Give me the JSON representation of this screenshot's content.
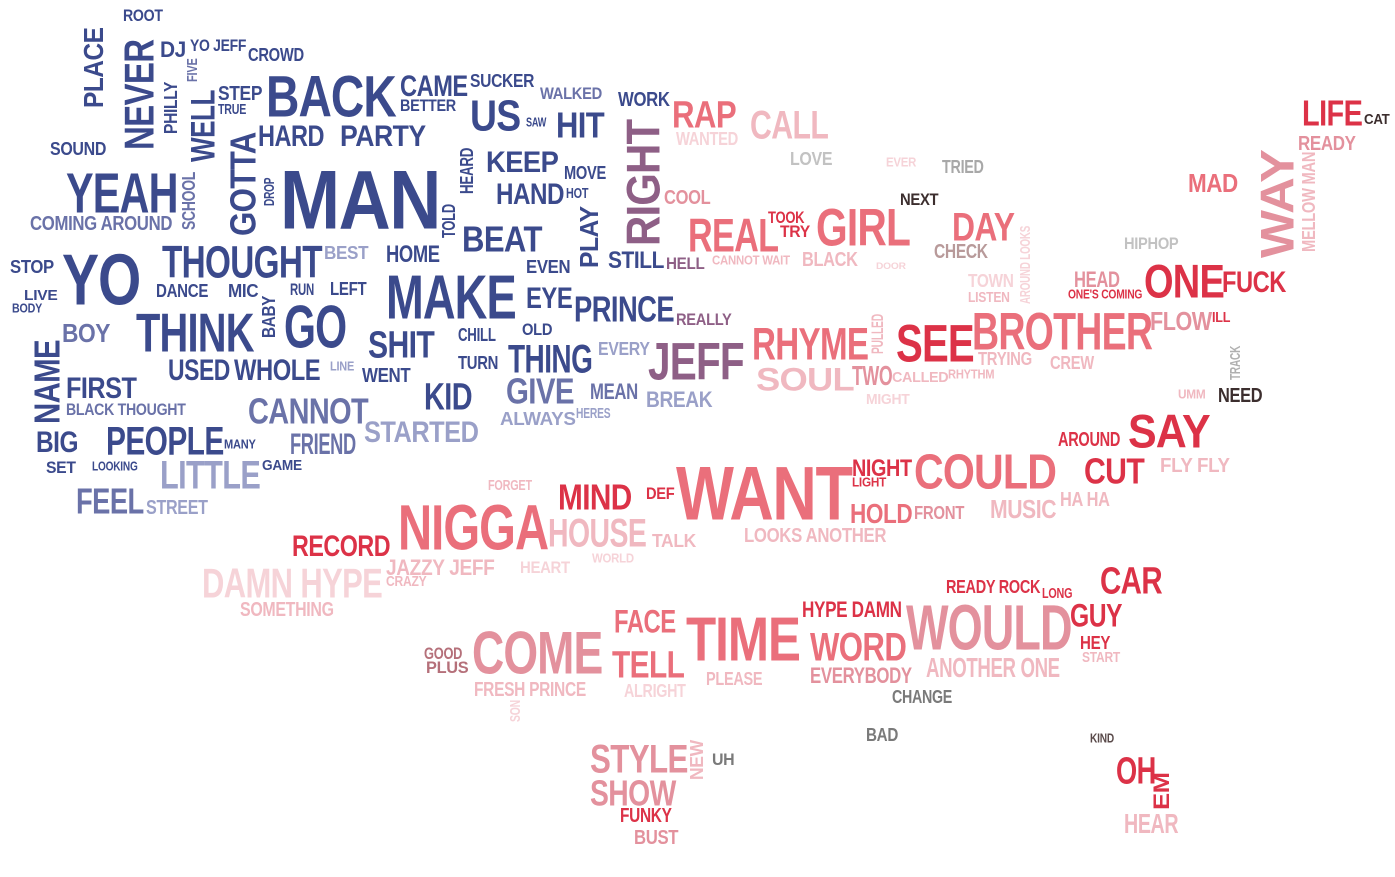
{
  "palette": {
    "navy": "#3b4a8c",
    "slate": "#6a72a8",
    "pale_blue": "#9aa0c8",
    "mauve": "#8e5f86",
    "red": "#dc3247",
    "coral": "#ea6f7b",
    "rose": "#e3919d",
    "pink": "#f0b8c0",
    "pale_pink": "#f6d3d8",
    "grey": "#8a8a8a",
    "dark": "#3c2e2e"
  },
  "words": [
    {
      "text": "ROOT",
      "color": "#3b4a8c"
    },
    {
      "text": "PLACE",
      "color": "#3b4a8c"
    },
    {
      "text": "NEVER",
      "color": "#3b4a8c"
    },
    {
      "text": "DJ",
      "color": "#3b4a8c"
    },
    {
      "text": "YO JEFF",
      "color": "#3b4a8c"
    },
    {
      "text": "CROWD",
      "color": "#3b4a8c"
    },
    {
      "text": "FIVE",
      "color": "#6a72a8"
    },
    {
      "text": "PHILLY",
      "color": "#3b4a8c"
    },
    {
      "text": "STEP",
      "color": "#3b4a8c"
    },
    {
      "text": "TRUE",
      "color": "#3b4a8c"
    },
    {
      "text": "WELL",
      "color": "#3b4a8c"
    },
    {
      "text": "BACK",
      "color": "#3b4a8c"
    },
    {
      "text": "CAME",
      "color": "#3b4a8c"
    },
    {
      "text": "BETTER",
      "color": "#3b4a8c"
    },
    {
      "text": "SUCKER",
      "color": "#3b4a8c"
    },
    {
      "text": "WALKED",
      "color": "#6a72a8"
    },
    {
      "text": "US",
      "color": "#3b4a8c"
    },
    {
      "text": "SAW",
      "color": "#3b4a8c"
    },
    {
      "text": "HIT",
      "color": "#3b4a8c"
    },
    {
      "text": "WORK",
      "color": "#3b4a8c"
    },
    {
      "text": "HARD",
      "color": "#3b4a8c"
    },
    {
      "text": "PARTY",
      "color": "#3b4a8c"
    },
    {
      "text": "SOUND",
      "color": "#3b4a8c"
    },
    {
      "text": "YEAH",
      "color": "#3b4a8c"
    },
    {
      "text": "SCHOOL",
      "color": "#6a72a8"
    },
    {
      "text": "GOTTA",
      "color": "#3b4a8c"
    },
    {
      "text": "DROP",
      "color": "#3b4a8c"
    },
    {
      "text": "MAN",
      "color": "#3b4a8c"
    },
    {
      "text": "HEARD",
      "color": "#3b4a8c"
    },
    {
      "text": "KEEP",
      "color": "#3b4a8c"
    },
    {
      "text": "MOVE",
      "color": "#3b4a8c"
    },
    {
      "text": "HAND",
      "color": "#3b4a8c"
    },
    {
      "text": "HOT",
      "color": "#3b4a8c"
    },
    {
      "text": "COMING AROUND",
      "color": "#6a72a8"
    },
    {
      "text": "TOLD",
      "color": "#3b4a8c"
    },
    {
      "text": "BEAT",
      "color": "#3b4a8c"
    },
    {
      "text": "PLAY",
      "color": "#3b4a8c"
    },
    {
      "text": "THOUGHT",
      "color": "#3b4a8c"
    },
    {
      "text": "BEST",
      "color": "#9aa0c8"
    },
    {
      "text": "HOME",
      "color": "#3b4a8c"
    },
    {
      "text": "EVEN",
      "color": "#3b4a8c"
    },
    {
      "text": "STILL",
      "color": "#3b4a8c"
    },
    {
      "text": "HELL",
      "color": "#8e5f86"
    },
    {
      "text": "STOP",
      "color": "#3b4a8c"
    },
    {
      "text": "YO",
      "color": "#3b4a8c"
    },
    {
      "text": "LIVE",
      "color": "#3b4a8c"
    },
    {
      "text": "BODY",
      "color": "#3b4a8c"
    },
    {
      "text": "DANCE",
      "color": "#3b4a8c"
    },
    {
      "text": "MIC",
      "color": "#3b4a8c"
    },
    {
      "text": "RUN",
      "color": "#3b4a8c"
    },
    {
      "text": "LEFT",
      "color": "#3b4a8c"
    },
    {
      "text": "MAKE",
      "color": "#3b4a8c"
    },
    {
      "text": "EYE",
      "color": "#3b4a8c"
    },
    {
      "text": "PRINCE",
      "color": "#3b4a8c"
    },
    {
      "text": "REALLY",
      "color": "#8e5f86"
    },
    {
      "text": "BOY",
      "color": "#6a72a8"
    },
    {
      "text": "THINK",
      "color": "#3b4a8c"
    },
    {
      "text": "BABY",
      "color": "#3b4a8c"
    },
    {
      "text": "GO",
      "color": "#3b4a8c"
    },
    {
      "text": "SHIT",
      "color": "#3b4a8c"
    },
    {
      "text": "CHILL",
      "color": "#3b4a8c"
    },
    {
      "text": "OLD",
      "color": "#3b4a8c"
    },
    {
      "text": "NAME",
      "color": "#3b4a8c"
    },
    {
      "text": "TURN",
      "color": "#3b4a8c"
    },
    {
      "text": "THING",
      "color": "#3b4a8c"
    },
    {
      "text": "EVERY",
      "color": "#9aa0c8"
    },
    {
      "text": "JEFF",
      "color": "#8e5f86"
    },
    {
      "text": "USED",
      "color": "#3b4a8c"
    },
    {
      "text": "WHOLE",
      "color": "#3b4a8c"
    },
    {
      "text": "LINE",
      "color": "#9aa0c8"
    },
    {
      "text": "WENT",
      "color": "#3b4a8c"
    },
    {
      "text": "FIRST",
      "color": "#3b4a8c"
    },
    {
      "text": "KID",
      "color": "#3b4a8c"
    },
    {
      "text": "GIVE",
      "color": "#6a72a8"
    },
    {
      "text": "MEAN",
      "color": "#6a72a8"
    },
    {
      "text": "BREAK",
      "color": "#9aa0c8"
    },
    {
      "text": "BLACK THOUGHT",
      "color": "#6a72a8"
    },
    {
      "text": "CANNOT",
      "color": "#6a72a8"
    },
    {
      "text": "ALWAYS",
      "color": "#9aa0c8"
    },
    {
      "text": "HERES",
      "color": "#9aa0c8"
    },
    {
      "text": "STARTED",
      "color": "#9aa0c8"
    },
    {
      "text": "BIG",
      "color": "#3b4a8c"
    },
    {
      "text": "PEOPLE",
      "color": "#3b4a8c"
    },
    {
      "text": "MANY",
      "color": "#3b4a8c"
    },
    {
      "text": "FRIEND",
      "color": "#6a72a8"
    },
    {
      "text": "SET",
      "color": "#3b4a8c"
    },
    {
      "text": "LOOKING",
      "color": "#3b4a8c"
    },
    {
      "text": "LITTLE",
      "color": "#9aa0c8"
    },
    {
      "text": "GAME",
      "color": "#3b4a8c"
    },
    {
      "text": "FEEL",
      "color": "#6a72a8"
    },
    {
      "text": "STREET",
      "color": "#9aa0c8"
    },
    {
      "text": "RIGHT",
      "color": "#8e5f86"
    },
    {
      "text": "RAP",
      "color": "#ea6f7b"
    },
    {
      "text": "WANTED",
      "color": "#f6d3d8"
    },
    {
      "text": "CALL",
      "color": "#f0b8c0"
    },
    {
      "text": "LOVE",
      "color": "#c2c2c2"
    },
    {
      "text": "EVER",
      "color": "#f6d3d8"
    },
    {
      "text": "TRIED",
      "color": "#a8a8a8"
    },
    {
      "text": "COOL",
      "color": "#e3919d"
    },
    {
      "text": "NEXT",
      "color": "#3c2e2e"
    },
    {
      "text": "REAL",
      "color": "#ea6f7b"
    },
    {
      "text": "TOOK",
      "color": "#dc3247"
    },
    {
      "text": "TRY",
      "color": "#dc3247"
    },
    {
      "text": "GIRL",
      "color": "#ea6f7b"
    },
    {
      "text": "DAY",
      "color": "#ea6f7b"
    },
    {
      "text": "CANNOT WAIT",
      "color": "#f0b8c0"
    },
    {
      "text": "BLACK",
      "color": "#f0b8c0"
    },
    {
      "text": "DOOR",
      "color": "#f6d3d8"
    },
    {
      "text": "CHECK",
      "color": "#b89a9a"
    },
    {
      "text": "AROUND LOOKS",
      "color": "#f6d3d8"
    },
    {
      "text": "TOWN",
      "color": "#f6d3d8"
    },
    {
      "text": "LISTEN",
      "color": "#f0b8c0"
    },
    {
      "text": "HIPHOP",
      "color": "#c2c2c2"
    },
    {
      "text": "HEAD",
      "color": "#e3919d"
    },
    {
      "text": "ONE'S COMING",
      "color": "#dc3247"
    },
    {
      "text": "ONE",
      "color": "#dc3247"
    },
    {
      "text": "FUCK",
      "color": "#dc3247"
    },
    {
      "text": "LIFE",
      "color": "#dc3247"
    },
    {
      "text": "CAT",
      "color": "#3c2e2e"
    },
    {
      "text": "READY",
      "color": "#e3919d"
    },
    {
      "text": "MAD",
      "color": "#ea6f7b"
    },
    {
      "text": "WAY",
      "color": "#e3919d"
    },
    {
      "text": "MELLOW MAN",
      "color": "#f0b8c0"
    },
    {
      "text": "RHYME",
      "color": "#ea6f7b"
    },
    {
      "text": "PULLED",
      "color": "#f0b8c0"
    },
    {
      "text": "SEE",
      "color": "#dc3247"
    },
    {
      "text": "BROTHER",
      "color": "#ea6f7b"
    },
    {
      "text": "FLOW",
      "color": "#e3919d"
    },
    {
      "text": "ILL",
      "color": "#dc3247"
    },
    {
      "text": "SOUL",
      "color": "#f0b8c0"
    },
    {
      "text": "TWO",
      "color": "#e3919d"
    },
    {
      "text": "CALLED",
      "color": "#f0b8c0"
    },
    {
      "text": "RHYTHM",
      "color": "#f0b8c0"
    },
    {
      "text": "TRYING",
      "color": "#f0b8c0"
    },
    {
      "text": "CREW",
      "color": "#f0b8c0"
    },
    {
      "text": "MIGHT",
      "color": "#f6d3d8"
    },
    {
      "text": "TRACK",
      "color": "#b0b0b0"
    },
    {
      "text": "UMM",
      "color": "#f0b8c0"
    },
    {
      "text": "NEED",
      "color": "#3c2e2e"
    },
    {
      "text": "AROUND",
      "color": "#dc3247"
    },
    {
      "text": "SAY",
      "color": "#dc3247"
    },
    {
      "text": "NIGHT",
      "color": "#dc3247"
    },
    {
      "text": "LIGHT",
      "color": "#dc3247"
    },
    {
      "text": "COULD",
      "color": "#ea6f7b"
    },
    {
      "text": "CUT",
      "color": "#dc3247"
    },
    {
      "text": "FLY FLY",
      "color": "#f0b8c0"
    },
    {
      "text": "FORGET",
      "color": "#f0b8c0"
    },
    {
      "text": "MIND",
      "color": "#dc3247"
    },
    {
      "text": "DEF",
      "color": "#dc3247"
    },
    {
      "text": "WANT",
      "color": "#ea6f7b"
    },
    {
      "text": "HOLD",
      "color": "#ea6f7b"
    },
    {
      "text": "FRONT",
      "color": "#e3919d"
    },
    {
      "text": "MUSIC",
      "color": "#f0b8c0"
    },
    {
      "text": "HA HA",
      "color": "#f0b8c0"
    },
    {
      "text": "RECORD",
      "color": "#dc3247"
    },
    {
      "text": "NIGGA",
      "color": "#ea6f7b"
    },
    {
      "text": "HOUSE",
      "color": "#f0b8c0"
    },
    {
      "text": "TALK",
      "color": "#f0b8c0"
    },
    {
      "text": "LOOKS ANOTHER",
      "color": "#f0b8c0"
    },
    {
      "text": "JAZZY JEFF",
      "color": "#f0b8c0"
    },
    {
      "text": "HEART",
      "color": "#f6d3d8"
    },
    {
      "text": "WORLD",
      "color": "#f6d3d8"
    },
    {
      "text": "DAMN HYPE",
      "color": "#f6d3d8"
    },
    {
      "text": "CRAZY",
      "color": "#f0b8c0"
    },
    {
      "text": "SOMETHING",
      "color": "#f0b8c0"
    },
    {
      "text": "READY ROCK",
      "color": "#dc3247"
    },
    {
      "text": "LONG",
      "color": "#dc3247"
    },
    {
      "text": "CAR",
      "color": "#dc3247"
    },
    {
      "text": "HYPE DAMN",
      "color": "#dc3247"
    },
    {
      "text": "FACE",
      "color": "#ea6f7b"
    },
    {
      "text": "TIME",
      "color": "#ea6f7b"
    },
    {
      "text": "WORD",
      "color": "#ea6f7b"
    },
    {
      "text": "WOULD",
      "color": "#e3919d"
    },
    {
      "text": "GUY",
      "color": "#dc3247"
    },
    {
      "text": "HEY",
      "color": "#dc3247"
    },
    {
      "text": "START",
      "color": "#f0b8c0"
    },
    {
      "text": "GOOD",
      "color": "#b5707a"
    },
    {
      "text": "PLUS",
      "color": "#b5707a"
    },
    {
      "text": "COME",
      "color": "#e3919d"
    },
    {
      "text": "TELL",
      "color": "#ea6f7b"
    },
    {
      "text": "ANOTHER ONE",
      "color": "#f0b8c0"
    },
    {
      "text": "EVERYBODY",
      "color": "#e3919d"
    },
    {
      "text": "PLEASE",
      "color": "#f0b8c0"
    },
    {
      "text": "FRESH PRINCE",
      "color": "#f0b8c0"
    },
    {
      "text": "ALRIGHT",
      "color": "#f6d3d8"
    },
    {
      "text": "SON",
      "color": "#f6d3d8"
    },
    {
      "text": "CHANGE",
      "color": "#7a7a7a"
    },
    {
      "text": "BAD",
      "color": "#7a7a7a"
    },
    {
      "text": "KIND",
      "color": "#5a4a4a"
    },
    {
      "text": "STYLE",
      "color": "#e3919d"
    },
    {
      "text": "NEW",
      "color": "#f0b8c0"
    },
    {
      "text": "UH",
      "color": "#7a7a7a"
    },
    {
      "text": "SHOW",
      "color": "#e3919d"
    },
    {
      "text": "FUNKY",
      "color": "#dc3247"
    },
    {
      "text": "BUST",
      "color": "#e3919d"
    },
    {
      "text": "OH",
      "color": "#dc3247"
    },
    {
      "text": "EM",
      "color": "#dc3247"
    },
    {
      "text": "HEAR",
      "color": "#f0b8c0"
    }
  ]
}
